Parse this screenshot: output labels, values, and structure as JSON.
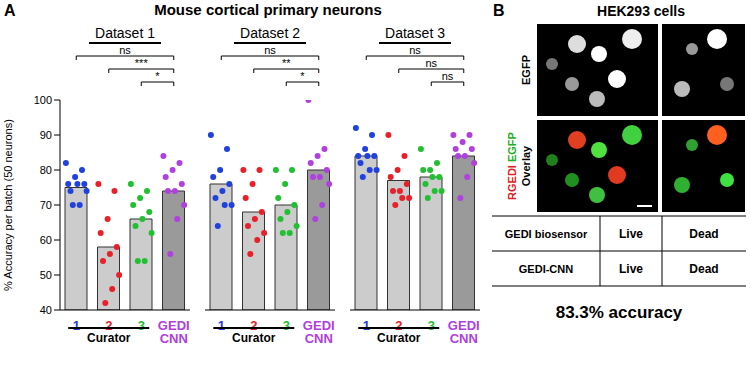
{
  "chart_data": {
    "type": "bar",
    "panel_label": "A",
    "title": "Mouse cortical primary neurons",
    "y_label": "% Accuracy per batch (50 neurons)",
    "ylim": [
      40,
      100
    ],
    "yticks": [
      40,
      50,
      60,
      70,
      80,
      90,
      100
    ],
    "categories": [
      "1",
      "2",
      "3",
      "GEDI CNN"
    ],
    "group_label": "Curator",
    "colors": [
      "#cccccc",
      "#cccccc",
      "#cccccc",
      "#9a9a9a"
    ],
    "point_colors": [
      "#2040e0",
      "#e8202a",
      "#20c030",
      "#b040e0"
    ],
    "groups": [
      {
        "title": "Dataset 1",
        "values": [
          75,
          58,
          66,
          74
        ],
        "points": [
          [
            82,
            80,
            78,
            76,
            76,
            76,
            74,
            74,
            70,
            70
          ],
          [
            76,
            74,
            66,
            62,
            58,
            56,
            54,
            50,
            46,
            42
          ],
          [
            76,
            74,
            72,
            70,
            68,
            66,
            64,
            62,
            54,
            54
          ],
          [
            84,
            82,
            80,
            78,
            76,
            74,
            74,
            70,
            66,
            56
          ]
        ],
        "comparisons": [
          {
            "pair": [
              "1",
              "GEDI CNN"
            ],
            "label": "ns"
          },
          {
            "pair": [
              "2",
              "GEDI CNN"
            ],
            "label": "***"
          },
          {
            "pair": [
              "3",
              "GEDI CNN"
            ],
            "label": "*"
          }
        ]
      },
      {
        "title": "Dataset 2",
        "values": [
          76,
          68,
          70,
          80
        ],
        "points": [
          [
            90,
            86,
            80,
            78,
            76,
            74,
            72,
            70,
            70,
            64
          ],
          [
            80,
            80,
            76,
            72,
            68,
            66,
            64,
            62,
            60,
            56
          ],
          [
            80,
            80,
            76,
            72,
            70,
            68,
            66,
            64,
            62,
            62
          ],
          [
            100,
            86,
            84,
            82,
            80,
            78,
            78,
            76,
            70,
            66
          ]
        ],
        "comparisons": [
          {
            "pair": [
              "1",
              "GEDI CNN"
            ],
            "label": "ns"
          },
          {
            "pair": [
              "2",
              "GEDI CNN"
            ],
            "label": "**"
          },
          {
            "pair": [
              "3",
              "GEDI CNN"
            ],
            "label": "*"
          }
        ]
      },
      {
        "title": "Dataset 3",
        "values": [
          84,
          77,
          78,
          84
        ],
        "points": [
          [
            92,
            90,
            86,
            84,
            84,
            84,
            82,
            80,
            80,
            78
          ],
          [
            90,
            84,
            80,
            78,
            76,
            74,
            74,
            72,
            72,
            70
          ],
          [
            86,
            82,
            80,
            80,
            78,
            78,
            76,
            74,
            74,
            72
          ],
          [
            90,
            90,
            88,
            86,
            86,
            84,
            84,
            82,
            78,
            72
          ]
        ],
        "comparisons": [
          {
            "pair": [
              "1",
              "GEDI CNN"
            ],
            "label": "ns"
          },
          {
            "pair": [
              "2",
              "GEDI CNN"
            ],
            "label": "ns"
          },
          {
            "pair": [
              "3",
              "GEDI CNN"
            ],
            "label": "ns"
          }
        ]
      }
    ]
  },
  "panel_b": {
    "label": "B",
    "title": "HEK293 cells",
    "top_row_label": "EGFP",
    "overlay_label": "Overlay",
    "overlay_channels": [
      {
        "text": "RGEDI",
        "color": "#e02020"
      },
      {
        "text": "EGFP",
        "color": "#20b020"
      }
    ],
    "table": {
      "rows": [
        [
          "GEDI biosensor",
          "Live",
          "Dead"
        ],
        [
          "GEDI-CNN",
          "Live",
          "Dead"
        ]
      ]
    },
    "accuracy": "83.3% accuracy"
  }
}
